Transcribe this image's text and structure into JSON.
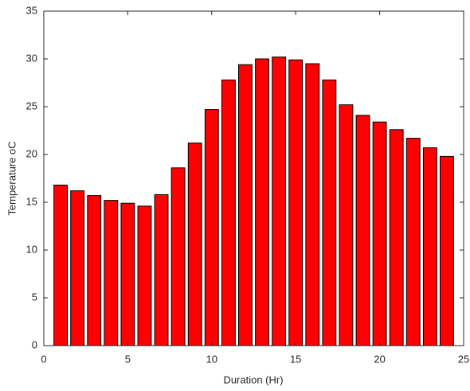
{
  "chart_data": {
    "type": "bar",
    "xlabel": "Duration (Hr)",
    "ylabel": "Temperature oC",
    "x": [
      1,
      2,
      3,
      4,
      5,
      6,
      7,
      8,
      9,
      10,
      11,
      12,
      13,
      14,
      15,
      16,
      17,
      18,
      19,
      20,
      21,
      22,
      23,
      24
    ],
    "values": [
      16.8,
      16.2,
      15.7,
      15.2,
      14.9,
      14.6,
      15.8,
      18.6,
      21.2,
      24.7,
      27.8,
      29.4,
      30.0,
      30.2,
      29.9,
      29.5,
      27.8,
      25.2,
      24.1,
      23.4,
      22.6,
      21.7,
      20.7,
      19.8
    ],
    "color": "#ff0000",
    "xlim": [
      0,
      25
    ],
    "xticks": [
      0,
      5,
      10,
      15,
      20,
      25
    ],
    "ylim": [
      0,
      35
    ],
    "yticks": [
      0,
      5,
      10,
      15,
      20,
      25,
      30,
      35
    ]
  }
}
